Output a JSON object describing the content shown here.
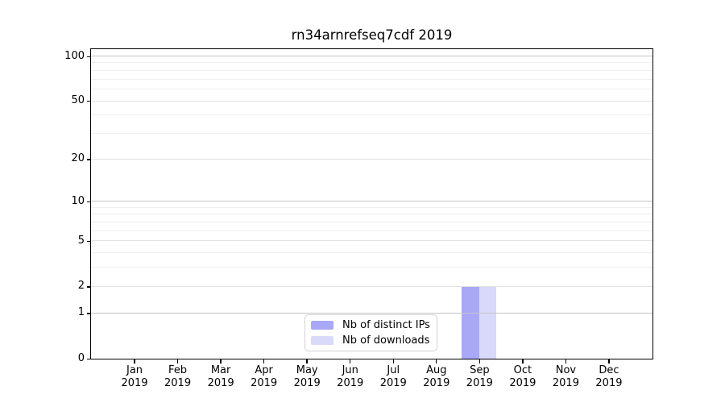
{
  "chart_data": {
    "type": "bar",
    "title": "rn34arnrefseq7cdf 2019",
    "x_categories": [
      "Jan",
      "Feb",
      "Mar",
      "Apr",
      "May",
      "Jun",
      "Jul",
      "Aug",
      "Sep",
      "Oct",
      "Nov",
      "Dec"
    ],
    "x_year_label": "2019",
    "series": [
      {
        "name": "Nb of distinct IPs",
        "color": "#a8a8f7",
        "values": [
          0,
          0,
          0,
          0,
          0,
          0,
          0,
          0,
          2,
          0,
          0,
          0
        ]
      },
      {
        "name": "Nb of downloads",
        "color": "#d9d9fa",
        "values": [
          0,
          0,
          0,
          0,
          0,
          0,
          0,
          0,
          2,
          0,
          0,
          0
        ]
      }
    ],
    "y_scale": "log1p",
    "ylim": [
      0,
      112
    ],
    "y_tick_values": [
      0,
      1,
      2,
      5,
      10,
      20,
      50,
      100
    ],
    "y_tick_labels": [
      "0",
      "1",
      "2",
      "5",
      "10",
      "20",
      "50",
      "100"
    ],
    "grid": true,
    "gridlines_decade": [
      1,
      10,
      100
    ],
    "gridlines_labeled": [
      2,
      5,
      20,
      50
    ],
    "gridlines_minor": [
      3,
      4,
      6,
      7,
      8,
      9,
      30,
      40,
      60,
      70,
      80,
      90
    ],
    "legend_position": "bottom-center",
    "legend_entries": [
      "Nb of distinct IPs",
      "Nb of downloads"
    ],
    "colors": {
      "distinct_ips_bar": "#a8a8f7",
      "downloads_bar": "#d9d9fa",
      "grid_decade": "#c5c5c5",
      "grid_labeled": "#e2e2e2",
      "grid_minor": "#efefef",
      "spine": "#000000",
      "text": "#000000"
    }
  }
}
